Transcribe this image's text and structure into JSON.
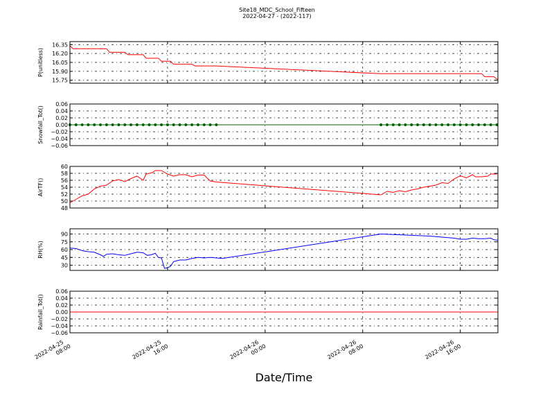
{
  "chart_data": [
    {
      "type": "line",
      "title": "Site18_MDC_School_Fifteen",
      "subtitle": "2022-04-27 - (2022-117)",
      "ylabel": "P(unitless)",
      "x": [
        "2022-04-25 08:00",
        "2022-04-25 08:15",
        "2022-04-25 11:00",
        "2022-04-25 11:15",
        "2022-04-25 12:30",
        "2022-04-25 12:45",
        "2022-04-25 14:00",
        "2022-04-25 14:15",
        "2022-04-25 15:15",
        "2022-04-25 15:30",
        "2022-04-25 16:15",
        "2022-04-25 16:30",
        "2022-04-25 18:00",
        "2022-04-25 18:15",
        "2022-04-25 20:00",
        "2022-04-26 09:30",
        "2022-04-26 17:45",
        "2022-04-26 18:00",
        "2022-04-26 18:45",
        "2022-04-26 19:00",
        "2022-04-26 19:05"
      ],
      "series": [
        {
          "color": "#ff0000",
          "values": [
            16.33,
            16.28,
            16.28,
            16.22,
            16.22,
            16.18,
            16.18,
            16.12,
            16.12,
            16.07,
            16.07,
            16.02,
            16.02,
            15.99,
            15.99,
            15.86,
            15.86,
            15.81,
            15.81,
            15.77,
            15.77
          ]
        }
      ],
      "xlim": [
        "2022-04-25 08:00",
        "2022-04-26 19:05"
      ],
      "ylim": [
        15.7,
        16.4
      ],
      "yticks": [
        15.75,
        {
          "value": 15.9,
          "label": "15.90"
        },
        16.05,
        {
          "value": 16.2,
          "label": "16.20"
        },
        16.35
      ],
      "grid": true
    },
    {
      "type": "line",
      "ylabel": "Snowfall_Tot()",
      "x": [
        "2022-04-25 08:00",
        "2022-04-25 08:30",
        "2022-04-25 09:00",
        "2022-04-25 09:30",
        "2022-04-25 10:00",
        "2022-04-25 10:30",
        "2022-04-25 11:00",
        "2022-04-25 11:30",
        "2022-04-25 12:00",
        "2022-04-25 12:30",
        "2022-04-25 13:00",
        "2022-04-25 13:30",
        "2022-04-25 14:00",
        "2022-04-25 14:30",
        "2022-04-25 15:00",
        "2022-04-25 15:30",
        "2022-04-25 16:00",
        "2022-04-25 16:30",
        "2022-04-25 17:00",
        "2022-04-25 17:30",
        "2022-04-25 18:00",
        "2022-04-25 18:30",
        "2022-04-25 19:00",
        "2022-04-25 19:30",
        "2022-04-25 20:00",
        "2022-04-26 09:30",
        "2022-04-26 10:00",
        "2022-04-26 10:30",
        "2022-04-26 11:00",
        "2022-04-26 11:30",
        "2022-04-26 12:00",
        "2022-04-26 12:30",
        "2022-04-26 13:00",
        "2022-04-26 13:30",
        "2022-04-26 14:00",
        "2022-04-26 14:30",
        "2022-04-26 15:00",
        "2022-04-26 15:30",
        "2022-04-26 16:00",
        "2022-04-26 16:30",
        "2022-04-26 17:00",
        "2022-04-26 17:30",
        "2022-04-26 18:00",
        "2022-04-26 18:30",
        "2022-04-26 19:00"
      ],
      "series": [
        {
          "color": "#006400",
          "markers": true,
          "values": [
            0,
            0,
            0,
            0,
            0,
            0,
            0,
            0,
            0,
            0,
            0,
            0,
            0,
            0,
            0,
            0,
            0,
            0,
            0,
            0,
            0,
            0,
            0,
            0,
            0,
            0,
            0,
            0,
            0,
            0,
            0,
            0,
            0,
            0,
            0,
            0,
            0,
            0,
            0,
            0,
            0,
            0,
            0,
            0,
            0
          ]
        }
      ],
      "xlim": [
        "2022-04-25 08:00",
        "2022-04-26 19:05"
      ],
      "ylim": [
        -0.06,
        0.06
      ],
      "yticks": [
        {
          "value": -0.06,
          "label": "−0.06"
        },
        {
          "value": -0.04,
          "label": "−0.04"
        },
        {
          "value": -0.02,
          "label": "−0.02"
        },
        {
          "value": 0,
          "label": "0.00"
        },
        0.02,
        0.04,
        0.06
      ],
      "grid": true
    },
    {
      "type": "line",
      "ylabel": "AirTF()",
      "x": [
        "2022-04-25 08:00",
        "2022-04-25 08:30",
        "2022-04-25 09:00",
        "2022-04-25 09:30",
        "2022-04-25 10:00",
        "2022-04-25 10:30",
        "2022-04-25 11:00",
        "2022-04-25 11:30",
        "2022-04-25 12:00",
        "2022-04-25 12:30",
        "2022-04-25 13:00",
        "2022-04-25 13:30",
        "2022-04-25 14:00",
        "2022-04-25 14:15",
        "2022-04-25 14:45",
        "2022-04-25 15:00",
        "2022-04-25 15:30",
        "2022-04-25 16:00",
        "2022-04-25 16:30",
        "2022-04-25 17:00",
        "2022-04-25 17:30",
        "2022-04-25 18:00",
        "2022-04-25 18:30",
        "2022-04-25 19:00",
        "2022-04-25 19:30",
        "2022-04-25 20:00",
        "2022-04-26 09:30",
        "2022-04-26 10:00",
        "2022-04-26 10:30",
        "2022-04-26 11:00",
        "2022-04-26 11:30",
        "2022-04-26 12:00",
        "2022-04-26 12:30",
        "2022-04-26 13:00",
        "2022-04-26 13:30",
        "2022-04-26 14:00",
        "2022-04-26 14:30",
        "2022-04-26 15:00",
        "2022-04-26 15:30",
        "2022-04-26 16:00",
        "2022-04-26 16:30",
        "2022-04-26 17:00",
        "2022-04-26 17:15",
        "2022-04-26 17:45",
        "2022-04-26 18:15",
        "2022-04-26 18:30",
        "2022-04-26 19:00"
      ],
      "series": [
        {
          "color": "#ff0000",
          "values": [
            49.5,
            50.5,
            51.5,
            52,
            53.5,
            54.3,
            54.6,
            55.8,
            56.2,
            55.6,
            56.5,
            57.2,
            56,
            57.8,
            58.2,
            58.8,
            58.8,
            57.8,
            57.2,
            57.6,
            57.6,
            57,
            57.5,
            57.5,
            55.8,
            55.5,
            51.8,
            52.8,
            52.5,
            53,
            52.7,
            53.2,
            53.5,
            54,
            54.3,
            54.6,
            55.3,
            55.1,
            56.4,
            57.3,
            56.7,
            57.6,
            57,
            57,
            57.2,
            57.8,
            57.8
          ]
        }
      ],
      "xlim": [
        "2022-04-25 08:00",
        "2022-04-26 19:05"
      ],
      "ylim": [
        48,
        60
      ],
      "yticks": [
        48,
        50,
        52,
        54,
        56,
        58,
        60
      ],
      "grid": true
    },
    {
      "type": "line",
      "ylabel": "RH(%)",
      "x": [
        "2022-04-25 08:00",
        "2022-04-25 08:30",
        "2022-04-25 09:00",
        "2022-04-25 09:30",
        "2022-04-25 10:00",
        "2022-04-25 10:30",
        "2022-04-25 10:45",
        "2022-04-25 11:00",
        "2022-04-25 11:30",
        "2022-04-25 12:00",
        "2022-04-25 12:30",
        "2022-04-25 13:00",
        "2022-04-25 13:30",
        "2022-04-25 14:00",
        "2022-04-25 14:20",
        "2022-04-25 14:40",
        "2022-04-25 15:00",
        "2022-04-25 15:15",
        "2022-04-25 15:30",
        "2022-04-25 15:45",
        "2022-04-25 16:00",
        "2022-04-25 16:15",
        "2022-04-25 16:30",
        "2022-04-25 17:00",
        "2022-04-25 17:30",
        "2022-04-25 18:00",
        "2022-04-25 18:30",
        "2022-04-25 19:00",
        "2022-04-25 19:30",
        "2022-04-25 20:00",
        "2022-04-25 20:30",
        "2022-04-26 09:30",
        "2022-04-26 10:30",
        "2022-04-26 11:30",
        "2022-04-26 12:30",
        "2022-04-26 13:30",
        "2022-04-26 14:30",
        "2022-04-26 15:30",
        "2022-04-26 16:00",
        "2022-04-26 16:30",
        "2022-04-26 17:00",
        "2022-04-26 17:30",
        "2022-04-26 18:00",
        "2022-04-26 18:30",
        "2022-04-26 18:45",
        "2022-04-26 19:05"
      ],
      "series": [
        {
          "color": "#0000ff",
          "values": [
            63,
            62,
            58,
            56,
            55,
            50,
            47,
            51,
            52,
            50,
            49,
            52,
            55,
            54,
            49,
            50,
            53,
            45,
            44,
            24,
            25,
            28,
            37,
            40,
            40,
            43,
            45,
            44,
            45,
            44,
            43,
            90,
            89,
            88,
            87,
            86,
            84,
            82,
            80,
            80,
            82,
            81,
            81,
            82,
            79,
            78
          ]
        }
      ],
      "xlim": [
        "2022-04-25 08:00",
        "2022-04-26 19:05"
      ],
      "ylim": [
        20,
        100
      ],
      "yticks": [
        30,
        45,
        60,
        75,
        90
      ],
      "grid": true
    },
    {
      "type": "line",
      "ylabel": "Rainfall_Tot()",
      "xlabel": "Date/Time",
      "x": [
        "2022-04-25 08:00",
        "2022-04-25 20:00",
        "2022-04-26 09:30",
        "2022-04-26 19:05"
      ],
      "series": [
        {
          "color": "#ff0000",
          "values": [
            0,
            0,
            0,
            0
          ]
        }
      ],
      "xlim": [
        "2022-04-25 08:00",
        "2022-04-26 19:05"
      ],
      "ylim": [
        -0.06,
        0.06
      ],
      "yticks": [
        {
          "value": -0.06,
          "label": "−0.06"
        },
        {
          "value": -0.04,
          "label": "−0.04"
        },
        {
          "value": -0.02,
          "label": "−0.02"
        },
        {
          "value": 0,
          "label": "0.00"
        },
        0.02,
        0.04,
        0.06
      ],
      "xticks": [
        "2022-04-25 08:00",
        "2022-04-25 16:00",
        "2022-04-26 00:00",
        "2022-04-26 08:00",
        "2022-04-26 16:00"
      ],
      "grid": true
    }
  ]
}
